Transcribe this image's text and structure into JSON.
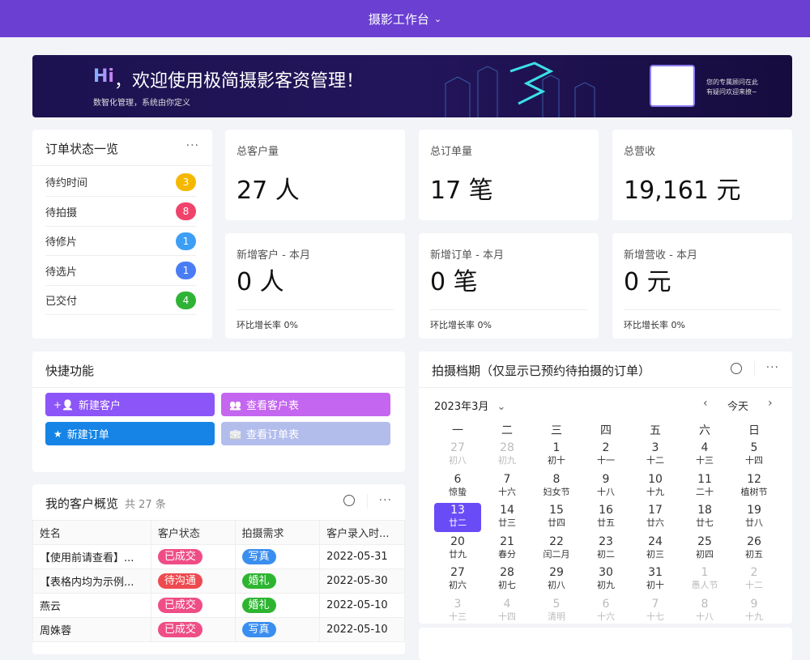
{
  "header": {
    "title": "摄影工作台"
  },
  "banner": {
    "hi": "Hi",
    "title": "，欢迎使用极简摄影客资管理！",
    "subtitle": "数智化管理，系统由你定义",
    "advisor_line1": "您的专属顾问在此",
    "advisor_line2": "有疑问欢迎来撩~"
  },
  "order_status": {
    "title": "订单状态一览",
    "items": [
      {
        "label": "待约时间",
        "count": "3",
        "color": "#f5b800"
      },
      {
        "label": "待拍摄",
        "count": "8",
        "color": "#f0436b"
      },
      {
        "label": "待修片",
        "count": "1",
        "color": "#3d9ef5"
      },
      {
        "label": "待选片",
        "count": "1",
        "color": "#4a7cf5"
      },
      {
        "label": "已交付",
        "count": "4",
        "color": "#2fb336"
      }
    ]
  },
  "stats": [
    {
      "label": "总客户量",
      "value": "27 人"
    },
    {
      "label": "总订单量",
      "value": "17 笔"
    },
    {
      "label": "总营收",
      "value": "19,161 元"
    },
    {
      "label": "新增客户 - 本月",
      "value": "0 人",
      "foot": "环比增长率 0%"
    },
    {
      "label": "新增订单 - 本月",
      "value": "0 笔",
      "foot": "环比增长率 0%"
    },
    {
      "label": "新增营收 - 本月",
      "value": "0 元",
      "foot": "环比增长率 0%"
    }
  ],
  "quick": {
    "title": "快捷功能",
    "buttons": [
      {
        "label": "新建客户",
        "icon": "add-user-icon",
        "color": "#8c55f7"
      },
      {
        "label": "查看客户表",
        "icon": "users-icon",
        "color": "#c466ef"
      },
      {
        "label": "新建订单",
        "icon": "star-icon",
        "color": "#1584e6"
      },
      {
        "label": "查看订单表",
        "icon": "briefcase-icon",
        "color": "#b3bdec"
      }
    ]
  },
  "customers": {
    "title": "我的客户概览",
    "count": "共 27 条",
    "columns": [
      "姓名",
      "客户状态",
      "拍摄需求",
      "客户录入时..."
    ],
    "rows": [
      {
        "name": "【使用前请查看】...",
        "status": "已成交",
        "status_color": "#ef4d86",
        "need": "写真",
        "need_color": "#3a8ef0",
        "date": "2022-05-31"
      },
      {
        "name": "【表格内均为示例...",
        "status": "待沟通",
        "status_color": "#ee4a50",
        "need": "婚礼",
        "need_color": "#2db531",
        "date": "2022-05-30"
      },
      {
        "name": "燕云",
        "status": "已成交",
        "status_color": "#ef4d86",
        "need": "婚礼",
        "need_color": "#2db531",
        "date": "2022-05-10"
      },
      {
        "name": "周姝蓉",
        "status": "已成交",
        "status_color": "#ef4d86",
        "need": "写真",
        "need_color": "#3a8ef0",
        "date": "2022-05-10"
      }
    ]
  },
  "calendar": {
    "title": "拍摄档期（仅显示已预约待拍摄的订单）",
    "month": "2023年3月",
    "today": "今天",
    "weekdays": [
      "一",
      "二",
      "三",
      "四",
      "五",
      "六",
      "日"
    ],
    "accent": "#6a4cf7",
    "days": [
      [
        "27",
        "初八",
        "o"
      ],
      [
        "28",
        "初九",
        "o"
      ],
      [
        "1",
        "初十",
        "c"
      ],
      [
        "2",
        "十一",
        "c"
      ],
      [
        "3",
        "十二",
        "c"
      ],
      [
        "4",
        "十三",
        "c"
      ],
      [
        "5",
        "十四",
        "c"
      ],
      [
        "6",
        "惊蛰",
        "c"
      ],
      [
        "7",
        "十六",
        "c"
      ],
      [
        "8",
        "妇女节",
        "c"
      ],
      [
        "9",
        "十八",
        "c"
      ],
      [
        "10",
        "十九",
        "c"
      ],
      [
        "11",
        "二十",
        "c"
      ],
      [
        "12",
        "植树节",
        "c"
      ],
      [
        "13",
        "廿二",
        "s"
      ],
      [
        "14",
        "廿三",
        "c"
      ],
      [
        "15",
        "廿四",
        "c"
      ],
      [
        "16",
        "廿五",
        "c"
      ],
      [
        "17",
        "廿六",
        "c"
      ],
      [
        "18",
        "廿七",
        "c"
      ],
      [
        "19",
        "廿八",
        "c"
      ],
      [
        "20",
        "廿九",
        "c"
      ],
      [
        "21",
        "春分",
        "c"
      ],
      [
        "22",
        "闰二月",
        "c"
      ],
      [
        "23",
        "初二",
        "c"
      ],
      [
        "24",
        "初三",
        "c"
      ],
      [
        "25",
        "初四",
        "c"
      ],
      [
        "26",
        "初五",
        "c"
      ],
      [
        "27",
        "初六",
        "c"
      ],
      [
        "28",
        "初七",
        "c"
      ],
      [
        "29",
        "初八",
        "c"
      ],
      [
        "30",
        "初九",
        "c"
      ],
      [
        "31",
        "初十",
        "c"
      ],
      [
        "1",
        "愚人节",
        "o"
      ],
      [
        "2",
        "十二",
        "o"
      ],
      [
        "3",
        "十三",
        "o"
      ],
      [
        "4",
        "十四",
        "o"
      ],
      [
        "5",
        "清明",
        "o"
      ],
      [
        "6",
        "十六",
        "o"
      ],
      [
        "7",
        "十七",
        "o"
      ],
      [
        "8",
        "十八",
        "o"
      ],
      [
        "9",
        "十九",
        "o"
      ]
    ]
  }
}
